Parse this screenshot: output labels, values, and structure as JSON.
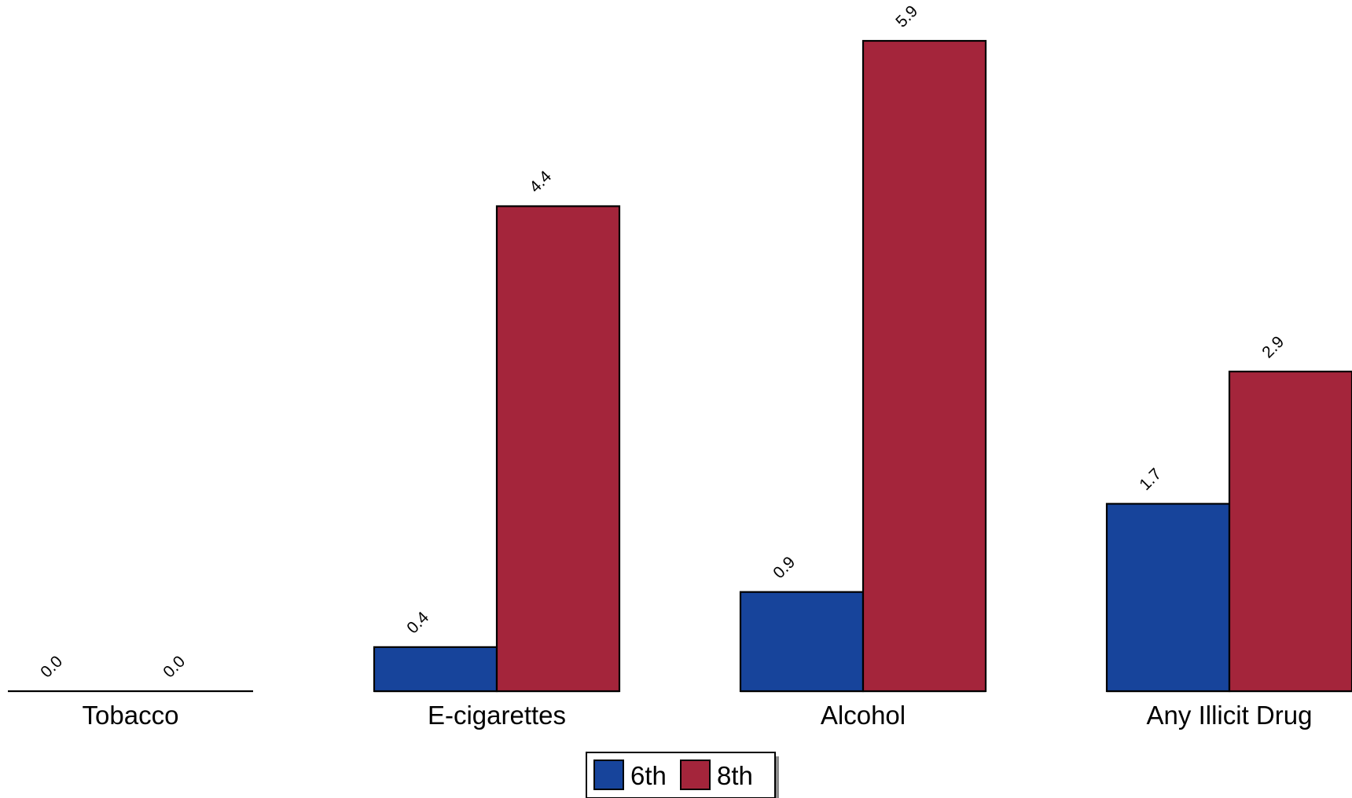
{
  "chart_data": {
    "type": "bar",
    "categories": [
      "Tobacco",
      "E-cigarettes",
      "Alcohol",
      "Any Illicit Drug"
    ],
    "series": [
      {
        "name": "6th",
        "values": [
          0.0,
          0.4,
          0.9,
          1.7
        ],
        "labels": [
          "0.0",
          "0.4",
          "0.9",
          "1.7"
        ],
        "color": "#17449B"
      },
      {
        "name": "8th",
        "values": [
          0.0,
          4.4,
          5.9,
          2.9
        ],
        "labels": [
          "0.0",
          "4.4",
          "5.9",
          "2.9"
        ],
        "color": "#A4253B"
      }
    ],
    "ylim": [
      0,
      5.9
    ],
    "grid": false,
    "y_axis_shown": false,
    "data_labels_rotated": true,
    "legend_position": "bottom-center"
  }
}
